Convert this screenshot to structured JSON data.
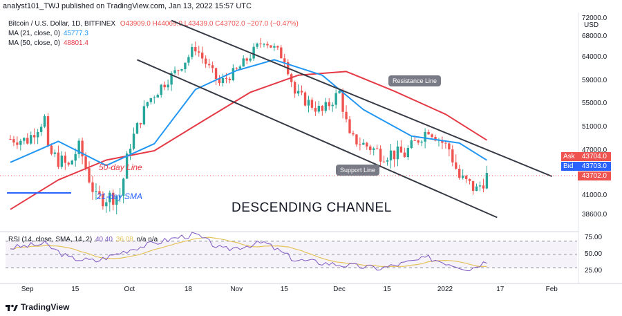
{
  "header": {
    "text": "analyst101_TWJ published on TradingView.com, Jan 13, 2022 15:57 UTC"
  },
  "legend": {
    "symbol": "Bitcoin / U.S. Dollar, 1D, BITFINEX",
    "ohlc": "O43909.0  H44069.0  L43439.0  C43702.0  −207.0 (−0.47%)",
    "ma21_label": "MA (21, close, 0)",
    "ma21_value": "45777.3",
    "ma50_label": "MA (50, close, 0)",
    "ma50_value": "48801.4",
    "rsi_label": "RSI (14, close, SMA, 14, 2)",
    "rsi_value": "40.40",
    "rsi_sma": "36.08",
    "rsi_na": "n/a  n/a"
  },
  "colors": {
    "bull": "#26a69a",
    "bear": "#ef5350",
    "ma21": "#2196f3",
    "ma50": "#e53945",
    "channel": "#363a45",
    "rsi": "#7e57c2",
    "rsi_sma": "#e6c35a",
    "ask": "#ef5350",
    "bid": "#2962ff",
    "last": "#ef5350"
  },
  "price_axis": {
    "currency": "USD",
    "labels": [
      "72000.0",
      "68000.0",
      "64000.0",
      "59000.0",
      "55000.0",
      "51000.0",
      "47000.0",
      "41000.0",
      "38600.0"
    ],
    "ask_label": "Ask",
    "ask_value": "43704.0",
    "bid_label": "Bid",
    "bid_value": "43703.0",
    "last_value": "43702.0"
  },
  "rsi_axis": {
    "labels": [
      "75.00",
      "50.00",
      "25.00"
    ]
  },
  "time_axis": {
    "labels": [
      "Sep",
      "15",
      "Oct",
      "18",
      "Nov",
      "15",
      "Dec",
      "15",
      "2022",
      "17",
      "Feb"
    ]
  },
  "annotations": {
    "resistance": "Resistance Line",
    "support": "Support Line",
    "channel_title": "DESCENDING CHANNEL",
    "ma50_note": "50-day Line",
    "ma21_note": "21-day SMA"
  },
  "footer": {
    "brand": "TradingView"
  },
  "chart_data": {
    "type": "candlestick",
    "title": "Bitcoin / U.S. Dollar, 1D, BITFINEX",
    "x_start": "2021-08-26",
    "x_end": "2022-02-07",
    "ylim": [
      36000,
      72500
    ],
    "ohlc_last": {
      "open": 43909.0,
      "high": 44069.0,
      "low": 43439.0,
      "close": 43702.0
    },
    "close_series": [
      {
        "date": "2021-08-27",
        "close": 49000
      },
      {
        "date": "2021-09-01",
        "close": 48800
      },
      {
        "date": "2021-09-06",
        "close": 52500
      },
      {
        "date": "2021-09-07",
        "close": 46800
      },
      {
        "date": "2021-09-13",
        "close": 44900
      },
      {
        "date": "2021-09-16",
        "close": 47700
      },
      {
        "date": "2021-09-21",
        "close": 40600
      },
      {
        "date": "2021-09-28",
        "close": 41100
      },
      {
        "date": "2021-10-01",
        "close": 48100
      },
      {
        "date": "2021-10-06",
        "close": 55300
      },
      {
        "date": "2021-10-15",
        "close": 61500
      },
      {
        "date": "2021-10-20",
        "close": 66000
      },
      {
        "date": "2021-10-27",
        "close": 58500
      },
      {
        "date": "2021-11-01",
        "close": 61200
      },
      {
        "date": "2021-11-09",
        "close": 67500
      },
      {
        "date": "2021-11-15",
        "close": 63800
      },
      {
        "date": "2021-11-18",
        "close": 56800
      },
      {
        "date": "2021-11-26",
        "close": 53600
      },
      {
        "date": "2021-12-01",
        "close": 57000
      },
      {
        "date": "2021-12-04",
        "close": 49200
      },
      {
        "date": "2021-12-13",
        "close": 46700
      },
      {
        "date": "2021-12-20",
        "close": 46600
      },
      {
        "date": "2021-12-27",
        "close": 50700
      },
      {
        "date": "2022-01-02",
        "close": 47300
      },
      {
        "date": "2022-01-05",
        "close": 43500
      },
      {
        "date": "2022-01-10",
        "close": 41800
      },
      {
        "date": "2022-01-13",
        "close": 43702
      }
    ],
    "ma21": [
      {
        "date": "2021-08-27",
        "close": 45500
      },
      {
        "date": "2021-09-10",
        "close": 48600
      },
      {
        "date": "2021-09-24",
        "close": 45100
      },
      {
        "date": "2021-10-08",
        "close": 48200
      },
      {
        "date": "2021-10-20",
        "close": 57500
      },
      {
        "date": "2021-11-01",
        "close": 61200
      },
      {
        "date": "2021-11-12",
        "close": 63500
      },
      {
        "date": "2021-11-26",
        "close": 60200
      },
      {
        "date": "2021-12-08",
        "close": 54000
      },
      {
        "date": "2021-12-22",
        "close": 49500
      },
      {
        "date": "2022-01-05",
        "close": 48300
      },
      {
        "date": "2022-01-13",
        "close": 45777
      }
    ],
    "ma50": [
      {
        "date": "2021-08-27",
        "close": 39300
      },
      {
        "date": "2021-09-10",
        "close": 43200
      },
      {
        "date": "2021-09-24",
        "close": 45800
      },
      {
        "date": "2021-10-08",
        "close": 47000
      },
      {
        "date": "2021-10-22",
        "close": 52000
      },
      {
        "date": "2021-11-05",
        "close": 57000
      },
      {
        "date": "2021-11-19",
        "close": 60200
      },
      {
        "date": "2021-12-03",
        "close": 61000
      },
      {
        "date": "2021-12-17",
        "close": 57200
      },
      {
        "date": "2022-01-01",
        "close": 53200
      },
      {
        "date": "2022-01-13",
        "close": 48800
      }
    ],
    "channel_upper": [
      {
        "date": "2021-10-13",
        "close": 72400
      },
      {
        "date": "2022-02-01",
        "close": 43700
      }
    ],
    "channel_lower": [
      {
        "date": "2021-10-03",
        "close": 63500
      },
      {
        "date": "2022-01-16",
        "close": 38300
      }
    ],
    "rsi_series": [
      {
        "date": "2021-08-27",
        "rsi": 60
      },
      {
        "date": "2021-09-06",
        "rsi": 66
      },
      {
        "date": "2021-09-13",
        "rsi": 45
      },
      {
        "date": "2021-09-21",
        "rsi": 40
      },
      {
        "date": "2021-10-01",
        "rsi": 58
      },
      {
        "date": "2021-10-15",
        "rsi": 76
      },
      {
        "date": "2021-10-20",
        "rsi": 80
      },
      {
        "date": "2021-10-28",
        "rsi": 57
      },
      {
        "date": "2021-11-09",
        "rsi": 68
      },
      {
        "date": "2021-11-18",
        "rsi": 42
      },
      {
        "date": "2021-12-04",
        "rsi": 33
      },
      {
        "date": "2021-12-13",
        "rsi": 29
      },
      {
        "date": "2021-12-27",
        "rsi": 45
      },
      {
        "date": "2022-01-08",
        "rsi": 28
      },
      {
        "date": "2022-01-13",
        "rsi": 40.4
      }
    ]
  }
}
